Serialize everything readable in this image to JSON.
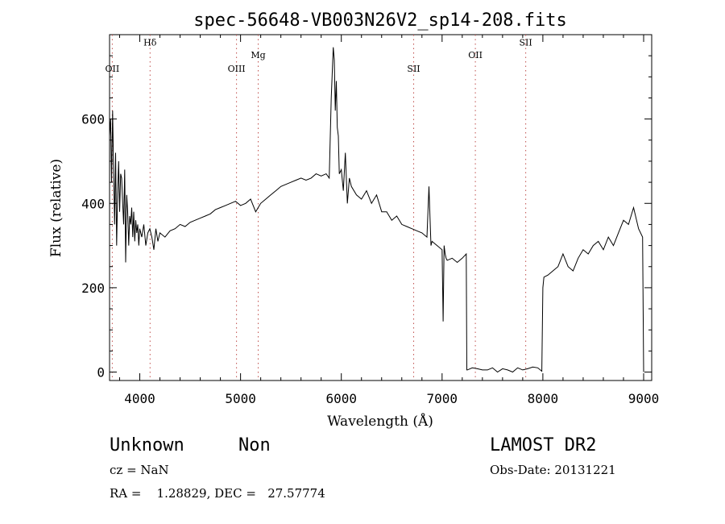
{
  "chart_data": {
    "type": "line",
    "title": "spec-56648-VB003N26V2_sp14-208.fits",
    "xlabel": "Wavelength (Å)",
    "ylabel": "Flux (relative)",
    "xlim": [
      3700,
      9080
    ],
    "ylim": [
      -20,
      800
    ],
    "xticks": [
      4000,
      5000,
      6000,
      7000,
      8000,
      9000
    ],
    "yticks": [
      0,
      200,
      400,
      600
    ],
    "grid": false,
    "line_color": "#000000",
    "marker_color": "#c0504d",
    "lines": [
      {
        "label": "OII",
        "x": 3727,
        "label_y": 712
      },
      {
        "label": "Hδ",
        "x": 4102,
        "label_y": 774
      },
      {
        "label": "OIII",
        "x": 4960,
        "label_y": 712
      },
      {
        "label": "Mg",
        "x": 5175,
        "label_y": 745
      },
      {
        "label": "SII",
        "x": 6718,
        "label_y": 712
      },
      {
        "label": "OII",
        "x": 7330,
        "label_y": 745
      },
      {
        "label": "SII",
        "x": 7830,
        "label_y": 774
      }
    ],
    "x": [
      3700,
      3710,
      3720,
      3730,
      3740,
      3750,
      3760,
      3770,
      3780,
      3790,
      3800,
      3810,
      3820,
      3830,
      3840,
      3850,
      3860,
      3870,
      3880,
      3890,
      3900,
      3910,
      3920,
      3930,
      3940,
      3950,
      3960,
      3970,
      3980,
      3990,
      4000,
      4020,
      4040,
      4060,
      4080,
      4100,
      4120,
      4140,
      4160,
      4180,
      4200,
      4250,
      4300,
      4350,
      4400,
      4450,
      4500,
      4550,
      4600,
      4650,
      4700,
      4750,
      4800,
      4850,
      4900,
      4950,
      5000,
      5050,
      5100,
      5150,
      5200,
      5250,
      5300,
      5350,
      5400,
      5450,
      5500,
      5550,
      5600,
      5650,
      5700,
      5750,
      5800,
      5850,
      5880,
      5900,
      5920,
      5930,
      5940,
      5950,
      5960,
      5970,
      5980,
      6000,
      6020,
      6040,
      6060,
      6080,
      6100,
      6150,
      6200,
      6250,
      6300,
      6350,
      6400,
      6450,
      6500,
      6550,
      6600,
      6650,
      6700,
      6750,
      6800,
      6850,
      6870,
      6890,
      6900,
      6950,
      7000,
      7010,
      7020,
      7030,
      7040,
      7050,
      7100,
      7150,
      7200,
      7240,
      7245,
      7250,
      7300,
      7350,
      7400,
      7450,
      7500,
      7550,
      7600,
      7650,
      7700,
      7750,
      7800,
      7850,
      7900,
      7950,
      7990,
      8000,
      8010,
      8050,
      8100,
      8150,
      8200,
      8250,
      8300,
      8350,
      8400,
      8450,
      8500,
      8550,
      8600,
      8650,
      8700,
      8750,
      8800,
      8850,
      8900,
      8950,
      8990,
      9000
    ],
    "values": [
      560,
      600,
      450,
      620,
      480,
      350,
      520,
      300,
      420,
      500,
      380,
      470,
      460,
      400,
      350,
      480,
      260,
      420,
      380,
      300,
      370,
      350,
      390,
      320,
      380,
      310,
      360,
      330,
      350,
      300,
      340,
      320,
      350,
      300,
      330,
      340,
      320,
      290,
      340,
      310,
      330,
      320,
      335,
      340,
      350,
      345,
      355,
      360,
      365,
      370,
      375,
      385,
      390,
      395,
      400,
      405,
      395,
      400,
      410,
      380,
      400,
      410,
      420,
      430,
      440,
      445,
      450,
      455,
      460,
      455,
      460,
      470,
      465,
      470,
      460,
      650,
      770,
      740,
      620,
      690,
      580,
      560,
      470,
      480,
      430,
      520,
      400,
      460,
      440,
      420,
      410,
      430,
      400,
      420,
      380,
      380,
      360,
      370,
      350,
      345,
      340,
      335,
      330,
      320,
      440,
      300,
      310,
      300,
      290,
      120,
      300,
      280,
      270,
      265,
      270,
      260,
      270,
      280,
      5,
      5,
      10,
      8,
      5,
      5,
      10,
      0,
      8,
      5,
      0,
      10,
      5,
      8,
      12,
      10,
      2,
      200,
      225,
      230,
      240,
      250,
      280,
      250,
      240,
      270,
      290,
      280,
      300,
      310,
      290,
      320,
      300,
      330,
      360,
      350,
      390,
      340,
      320,
      0
    ]
  },
  "footer": {
    "object_class": "Unknown",
    "subclass": "Non",
    "survey": "LAMOST DR2",
    "cz": "cz = NaN",
    "obs_date": "Obs-Date: 20131221",
    "radec": "RA =    1.28829, DEC =   27.57774"
  }
}
